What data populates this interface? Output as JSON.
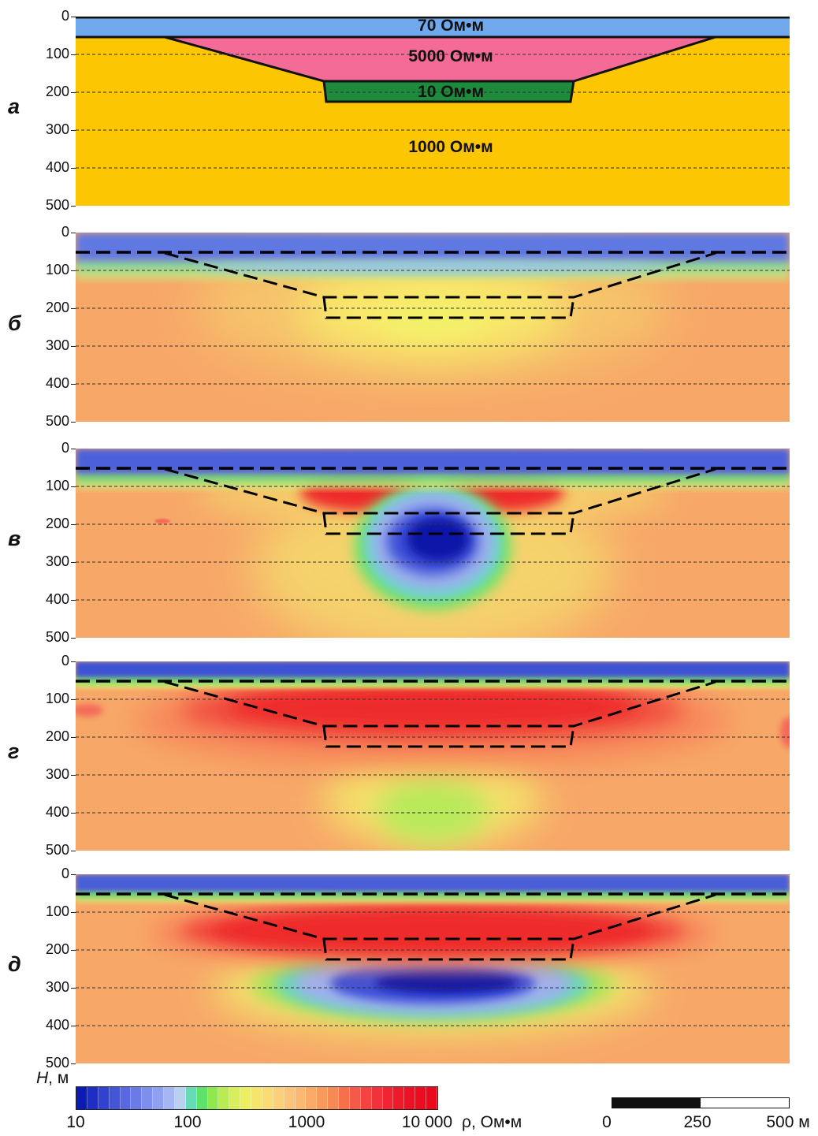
{
  "panels": [
    {
      "letter": "а",
      "type": "model"
    },
    {
      "letter": "б",
      "type": "inversion"
    },
    {
      "letter": "в",
      "type": "inversion"
    },
    {
      "letter": "г",
      "type": "inversion"
    },
    {
      "letter": "д",
      "type": "inversion"
    }
  ],
  "depth_ticks": [
    "0",
    "100",
    "200",
    "300",
    "400",
    "500"
  ],
  "depth_axis_label": "H, м",
  "model_layers": {
    "top": "70 Ом•м",
    "wedge": "5000 Ом•м",
    "lens": "10 Ом•м",
    "base": "1000 Ом•м"
  },
  "model_colors": {
    "top": "#6fa8ec",
    "wedge": "#f36b96",
    "lens": "#1e8a3c",
    "base": "#fdc602"
  },
  "colorbar": {
    "ticks": [
      "10",
      "100",
      "1000",
      "10 000"
    ],
    "unit": "ρ, Ом•м",
    "range_log10": [
      1,
      4
    ],
    "colors": [
      "#0b1ab3",
      "#1e2ec4",
      "#3142cf",
      "#4456d8",
      "#5868e0",
      "#6a7be6",
      "#7d8eec",
      "#8fa0f0",
      "#a5b6f2",
      "#b9d0ee",
      "#66dcb4",
      "#5fe26a",
      "#8ee84e",
      "#b8ec52",
      "#d8ee5c",
      "#eeee62",
      "#f8e46a",
      "#fadb74",
      "#fbd07a",
      "#fbc47a",
      "#fab872",
      "#f9aa66",
      "#f89a5c",
      "#f78a54",
      "#f6704c",
      "#f55a48",
      "#f44442",
      "#f2323a",
      "#f02432",
      "#ee1a2c",
      "#ec1226",
      "#ea0c20",
      "#e80a1c"
    ]
  },
  "scalebar": {
    "ticks": [
      "0",
      "250",
      "500 м"
    ]
  }
}
